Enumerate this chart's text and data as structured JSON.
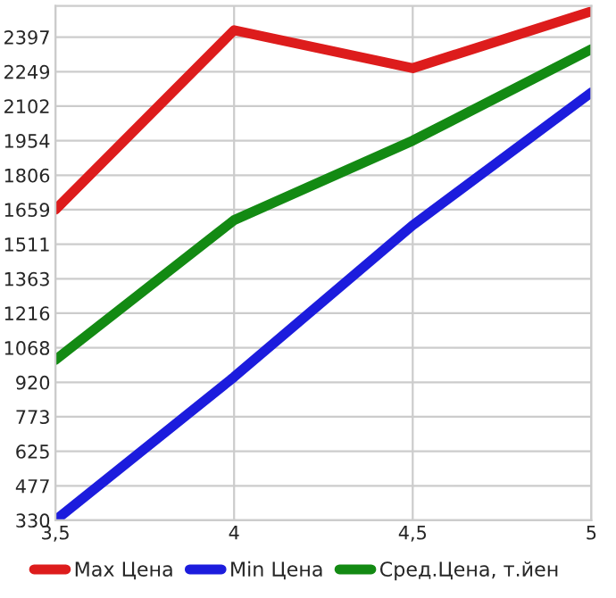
{
  "chart_data": {
    "type": "line",
    "x": [
      3.5,
      4,
      4.5,
      5
    ],
    "series": [
      {
        "name": "Max Цена",
        "color": "#dd1c1c",
        "values": [
          1659,
          2426,
          2264,
          2507
        ]
      },
      {
        "name": "Min Цена",
        "color": "#1c1cdd",
        "values": [
          330,
          943,
          1592,
          2160
        ]
      },
      {
        "name": "Сред.Цена, т.йен",
        "color": "#138a13",
        "values": [
          1016,
          1614,
          1954,
          2345
        ]
      }
    ],
    "xlim": [
      3.5,
      5
    ],
    "xticks": [
      {
        "value": 3.5,
        "label": "3,5"
      },
      4,
      {
        "value": 4.5,
        "label": "4,5"
      },
      5
    ],
    "ylim": [
      330,
      2530
    ],
    "yticks": [
      330,
      477,
      625,
      773,
      920,
      1068,
      1216,
      1363,
      1511,
      1659,
      1806,
      1954,
      2102,
      2249,
      2397
    ],
    "grid": true,
    "legend": "bottom",
    "marker": "none",
    "line_style": "solid"
  }
}
